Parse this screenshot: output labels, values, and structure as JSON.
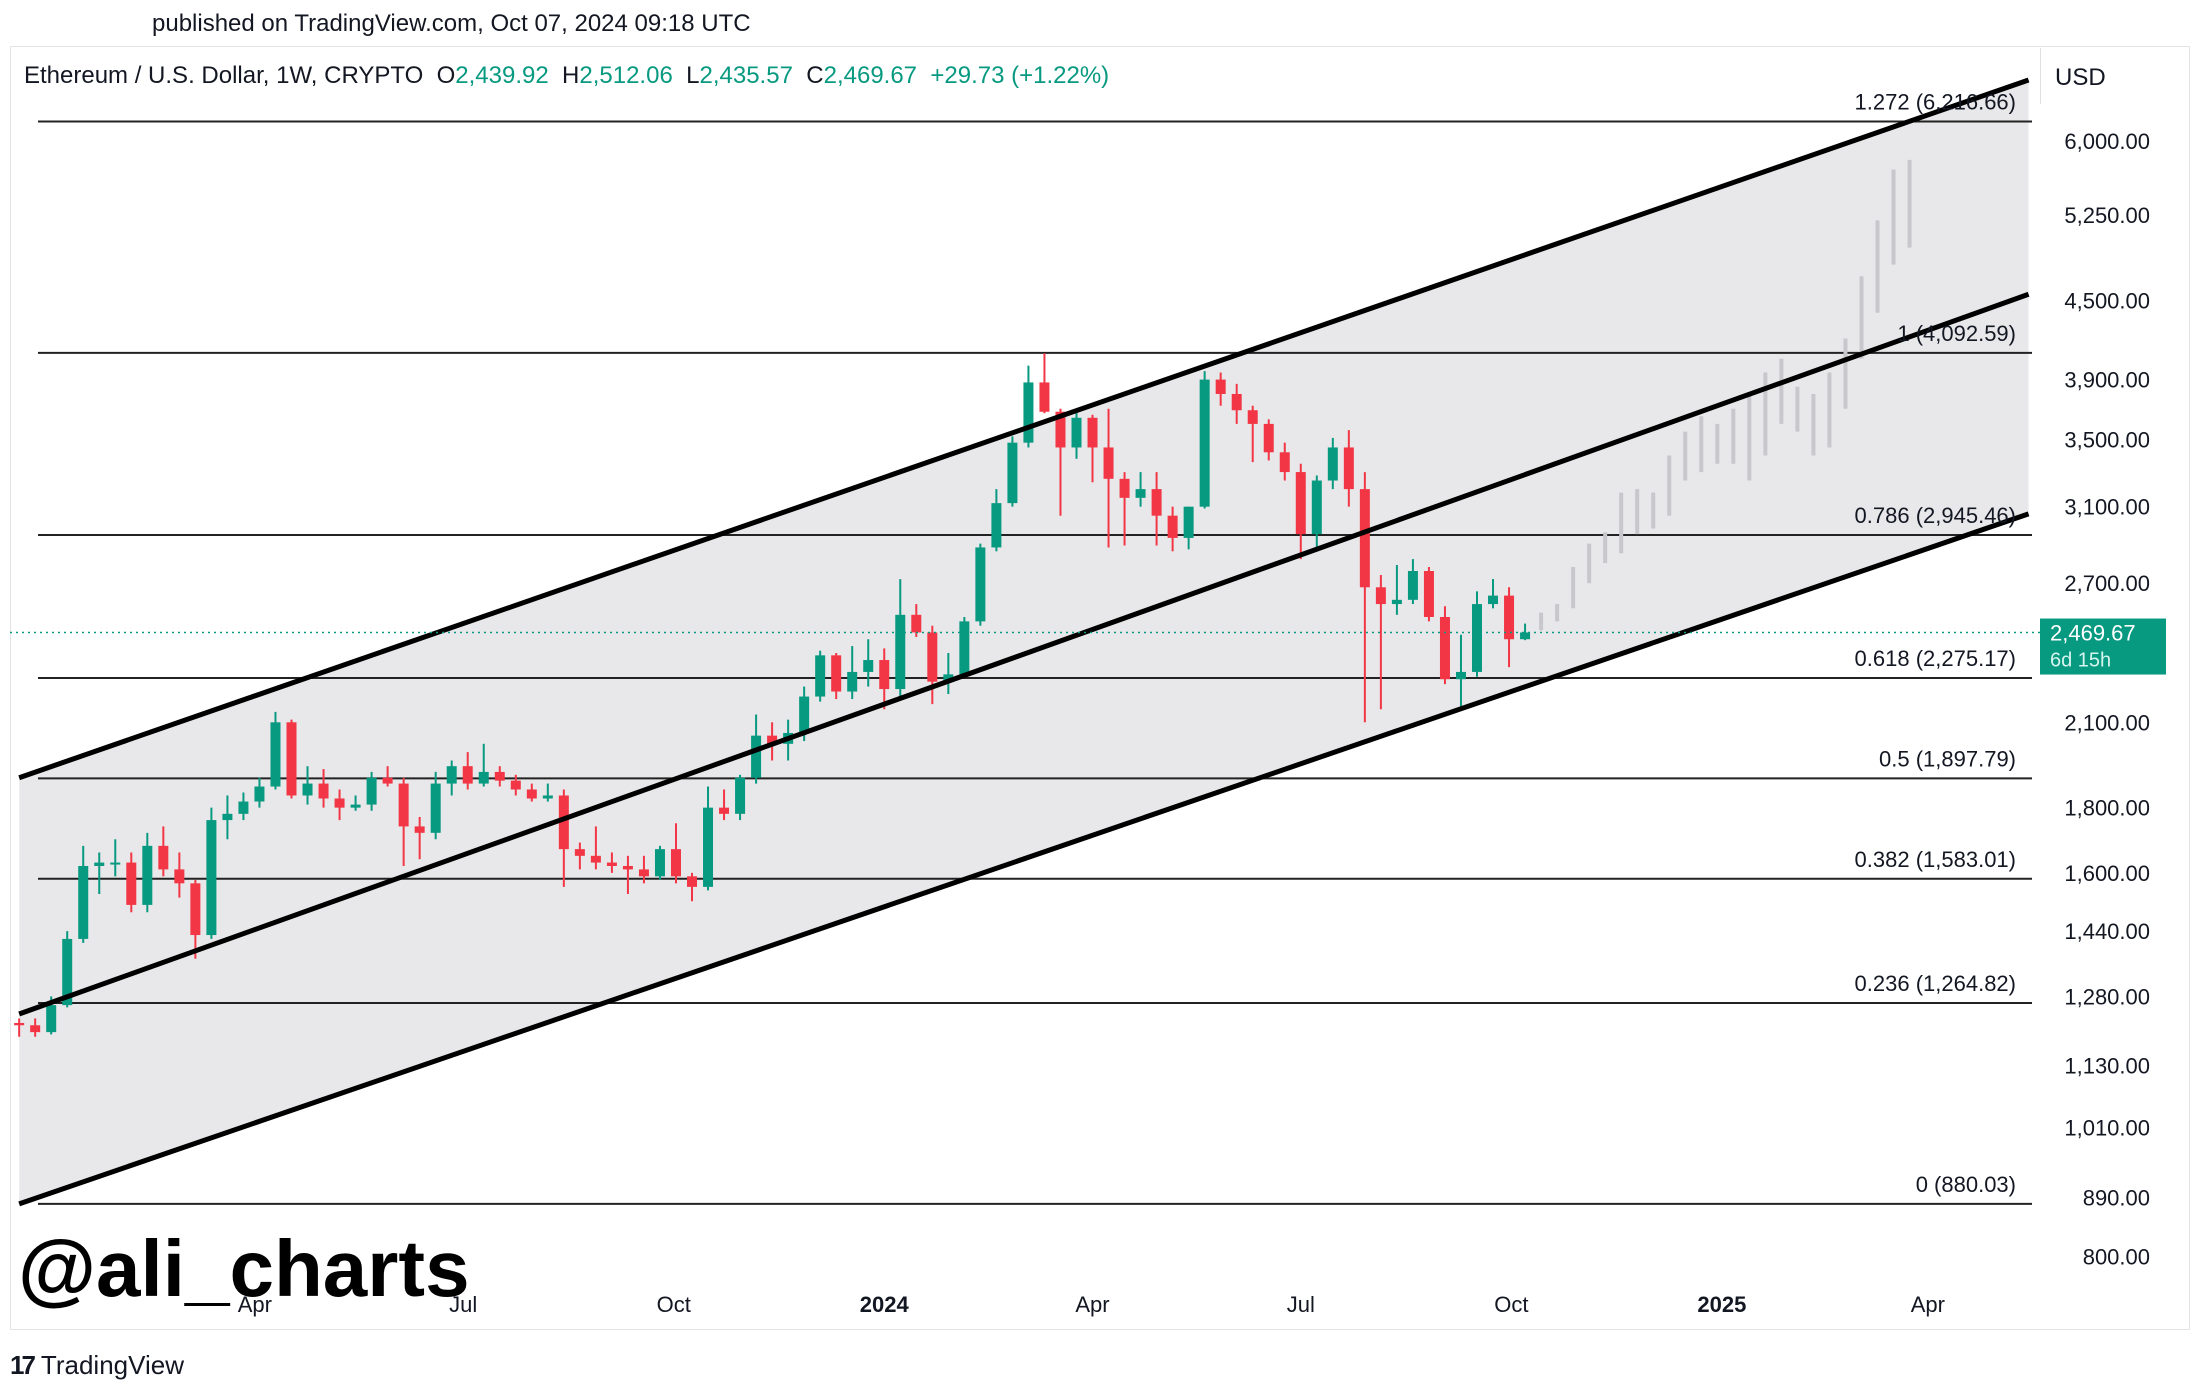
{
  "published": "published on TradingView.com, Oct 07, 2024 09:18 UTC",
  "header": {
    "symbol": "Ethereum / U.S. Dollar, 1W, CRYPTO",
    "o_label": "O",
    "o_value": "2,439.92",
    "h_label": "H",
    "h_value": "2,512.06",
    "l_label": "L",
    "l_value": "2,435.57",
    "c_label": "C",
    "c_value": "2,469.67",
    "change": "+29.73 (+1.22%)"
  },
  "currency": "USD",
  "watermark": "@ali_charts",
  "footer": {
    "logo": "17",
    "brand": "TradingView"
  },
  "colors": {
    "up": "#089981",
    "down": "#f23645",
    "band": "#e8e8ea",
    "line": "#000000"
  },
  "chart_data": {
    "type": "candlestick",
    "title": "Ethereum / U.S. Dollar, 1W, CRYPTO",
    "y_scale": "log",
    "ylim": [
      760,
      6700
    ],
    "y_ticks": [
      6000,
      5250,
      4500,
      3900,
      3500,
      3100,
      2700,
      2100,
      1800,
      1600,
      1440,
      1280,
      1130,
      1010,
      890,
      800
    ],
    "y_tick_labels": [
      "6,000.00",
      "5,250.00",
      "4,500.00",
      "3,900.00",
      "3,500.00",
      "3,100.00",
      "2,700.00",
      "2,100.00",
      "1,800.00",
      "1,600.00",
      "1,440.00",
      "1,280.00",
      "1,130.00",
      "1,010.00",
      "890.00",
      "800.00"
    ],
    "x_ticks": [
      {
        "label": "Apr",
        "date": "2023-04-01",
        "bold": false
      },
      {
        "label": "Jul",
        "date": "2023-07-01",
        "bold": false
      },
      {
        "label": "Oct",
        "date": "2023-10-01",
        "bold": false
      },
      {
        "label": "2024",
        "date": "2024-01-01",
        "bold": true
      },
      {
        "label": "Apr",
        "date": "2024-04-01",
        "bold": false
      },
      {
        "label": "Jul",
        "date": "2024-07-01",
        "bold": false
      },
      {
        "label": "Oct",
        "date": "2024-10-01",
        "bold": false
      },
      {
        "label": "2025",
        "date": "2025-01-01",
        "bold": true
      },
      {
        "label": "Apr",
        "date": "2025-04-01",
        "bold": false
      }
    ],
    "x_range": [
      "2022-12-15",
      "2025-05-20"
    ],
    "current_price": {
      "value": 2469.67,
      "label": "2,469.67",
      "countdown": "6d 15h"
    },
    "fib_levels": [
      {
        "ratio": "1.272",
        "price": 6216.66,
        "label": "1.272 (6,216.66)"
      },
      {
        "ratio": "1",
        "price": 4092.59,
        "label": "1 (4,092.59)"
      },
      {
        "ratio": "0.786",
        "price": 2945.46,
        "label": "0.786 (2,945.46)"
      },
      {
        "ratio": "0.618",
        "price": 2275.17,
        "label": "0.618 (2,275.17)"
      },
      {
        "ratio": "0.5",
        "price": 1897.79,
        "label": "0.5 (1,897.79)"
      },
      {
        "ratio": "0.382",
        "price": 1583.01,
        "label": "0.382 (1,583.01)"
      },
      {
        "ratio": "0.236",
        "price": 1264.82,
        "label": "0.236 (1,264.82)"
      },
      {
        "ratio": "0",
        "price": 880.03,
        "label": "0 (880.03)"
      }
    ],
    "channel": {
      "start_date": "2022-12-19",
      "end_date": "2025-05-15",
      "upper": [
        1900,
        6700
      ],
      "middle": [
        1240,
        4550
      ],
      "lower": [
        880,
        3060
      ]
    },
    "candles": [
      [
        "2022-12-19",
        1220,
        1215,
        1230,
        1190
      ],
      [
        "2022-12-26",
        1215,
        1200,
        1230,
        1190
      ],
      [
        "2023-01-02",
        1200,
        1260,
        1280,
        1195
      ],
      [
        "2023-01-09",
        1260,
        1420,
        1440,
        1255
      ],
      [
        "2023-01-16",
        1420,
        1620,
        1680,
        1410
      ],
      [
        "2023-01-23",
        1620,
        1630,
        1660,
        1540
      ],
      [
        "2023-01-30",
        1630,
        1630,
        1700,
        1590
      ],
      [
        "2023-02-06",
        1630,
        1510,
        1660,
        1490
      ],
      [
        "2023-02-13",
        1510,
        1680,
        1720,
        1490
      ],
      [
        "2023-02-20",
        1680,
        1610,
        1740,
        1590
      ],
      [
        "2023-02-27",
        1610,
        1570,
        1660,
        1530
      ],
      [
        "2023-03-06",
        1570,
        1430,
        1580,
        1370
      ],
      [
        "2023-03-13",
        1430,
        1760,
        1800,
        1420
      ],
      [
        "2023-03-20",
        1760,
        1780,
        1840,
        1700
      ],
      [
        "2023-03-27",
        1780,
        1820,
        1850,
        1760
      ],
      [
        "2023-04-03",
        1820,
        1870,
        1900,
        1800
      ],
      [
        "2023-04-10",
        1870,
        2100,
        2140,
        1860
      ],
      [
        "2023-04-17",
        2100,
        1840,
        2110,
        1830
      ],
      [
        "2023-04-24",
        1840,
        1880,
        1940,
        1810
      ],
      [
        "2023-05-01",
        1880,
        1830,
        1930,
        1800
      ],
      [
        "2023-05-08",
        1830,
        1800,
        1860,
        1760
      ],
      [
        "2023-05-15",
        1800,
        1810,
        1840,
        1790
      ],
      [
        "2023-05-22",
        1810,
        1900,
        1920,
        1790
      ],
      [
        "2023-05-29",
        1900,
        1880,
        1940,
        1870
      ],
      [
        "2023-06-05",
        1880,
        1740,
        1900,
        1620
      ],
      [
        "2023-06-12",
        1740,
        1720,
        1770,
        1640
      ],
      [
        "2023-06-19",
        1720,
        1880,
        1920,
        1700
      ],
      [
        "2023-06-26",
        1880,
        1940,
        1960,
        1840
      ],
      [
        "2023-07-03",
        1940,
        1880,
        1990,
        1860
      ],
      [
        "2023-07-10",
        1880,
        1920,
        2020,
        1870
      ],
      [
        "2023-07-17",
        1920,
        1890,
        1940,
        1870
      ],
      [
        "2023-07-24",
        1890,
        1860,
        1910,
        1840
      ],
      [
        "2023-07-31",
        1860,
        1830,
        1880,
        1820
      ],
      [
        "2023-08-07",
        1830,
        1840,
        1880,
        1820
      ],
      [
        "2023-08-14",
        1840,
        1670,
        1860,
        1560
      ],
      [
        "2023-08-21",
        1670,
        1650,
        1690,
        1610
      ],
      [
        "2023-08-28",
        1650,
        1630,
        1740,
        1610
      ],
      [
        "2023-09-04",
        1630,
        1620,
        1660,
        1600
      ],
      [
        "2023-09-11",
        1620,
        1610,
        1650,
        1540
      ],
      [
        "2023-09-18",
        1610,
        1590,
        1650,
        1570
      ],
      [
        "2023-09-25",
        1590,
        1670,
        1680,
        1580
      ],
      [
        "2023-10-02",
        1670,
        1590,
        1750,
        1570
      ],
      [
        "2023-10-09",
        1590,
        1560,
        1600,
        1520
      ],
      [
        "2023-10-16",
        1560,
        1800,
        1870,
        1550
      ],
      [
        "2023-10-23",
        1800,
        1780,
        1860,
        1760
      ],
      [
        "2023-10-30",
        1780,
        1900,
        1910,
        1760
      ],
      [
        "2023-11-06",
        1900,
        2050,
        2130,
        1880
      ],
      [
        "2023-11-13",
        2050,
        2020,
        2100,
        1960
      ],
      [
        "2023-11-20",
        2020,
        2060,
        2110,
        1960
      ],
      [
        "2023-11-27",
        2060,
        2200,
        2240,
        2030
      ],
      [
        "2023-12-04",
        2200,
        2370,
        2390,
        2180
      ],
      [
        "2023-12-11",
        2370,
        2220,
        2380,
        2190
      ],
      [
        "2023-12-18",
        2220,
        2300,
        2410,
        2190
      ],
      [
        "2023-12-25",
        2300,
        2350,
        2440,
        2240
      ],
      [
        "2024-01-01",
        2350,
        2230,
        2400,
        2150
      ],
      [
        "2024-01-08",
        2230,
        2550,
        2720,
        2200
      ],
      [
        "2024-01-15",
        2550,
        2470,
        2600,
        2450
      ],
      [
        "2024-01-22",
        2470,
        2260,
        2500,
        2170
      ],
      [
        "2024-01-29",
        2260,
        2290,
        2380,
        2210
      ],
      [
        "2024-02-05",
        2290,
        2520,
        2540,
        2290
      ],
      [
        "2024-02-12",
        2520,
        2880,
        2900,
        2500
      ],
      [
        "2024-02-19",
        2880,
        3120,
        3200,
        2860
      ],
      [
        "2024-02-26",
        3120,
        3480,
        3520,
        3100
      ],
      [
        "2024-03-04",
        3480,
        3880,
        4000,
        3450
      ],
      [
        "2024-03-11",
        3880,
        3680,
        4090,
        3670
      ],
      [
        "2024-03-18",
        3680,
        3450,
        3700,
        3050
      ],
      [
        "2024-03-25",
        3450,
        3640,
        3690,
        3380
      ],
      [
        "2024-04-01",
        3640,
        3450,
        3660,
        3240
      ],
      [
        "2024-04-08",
        3450,
        3260,
        3700,
        2880
      ],
      [
        "2024-04-15",
        3260,
        3150,
        3300,
        2890
      ],
      [
        "2024-04-22",
        3150,
        3200,
        3300,
        3100
      ],
      [
        "2024-04-29",
        3200,
        3050,
        3300,
        2890
      ],
      [
        "2024-05-06",
        3050,
        2930,
        3100,
        2860
      ],
      [
        "2024-05-13",
        2930,
        3100,
        3100,
        2870
      ],
      [
        "2024-05-20",
        3100,
        3900,
        3960,
        3090
      ],
      [
        "2024-05-27",
        3900,
        3800,
        3950,
        3720
      ],
      [
        "2024-06-03",
        3800,
        3690,
        3870,
        3600
      ],
      [
        "2024-06-10",
        3690,
        3600,
        3720,
        3360
      ],
      [
        "2024-06-17",
        3600,
        3420,
        3630,
        3370
      ],
      [
        "2024-06-24",
        3420,
        3300,
        3480,
        3250
      ],
      [
        "2024-07-01",
        3300,
        2950,
        3350,
        2820
      ],
      [
        "2024-07-08",
        2950,
        3250,
        3280,
        2860
      ],
      [
        "2024-07-15",
        3250,
        3450,
        3510,
        3200
      ],
      [
        "2024-07-22",
        3450,
        3200,
        3560,
        3100
      ],
      [
        "2024-07-29",
        3200,
        2680,
        3300,
        2100
      ],
      [
        "2024-08-05",
        2680,
        2600,
        2740,
        2150
      ],
      [
        "2024-08-12",
        2600,
        2620,
        2790,
        2550
      ],
      [
        "2024-08-19",
        2620,
        2760,
        2820,
        2600
      ],
      [
        "2024-08-26",
        2760,
        2540,
        2780,
        2520
      ],
      [
        "2024-09-02",
        2540,
        2270,
        2590,
        2250
      ],
      [
        "2024-09-09",
        2270,
        2300,
        2460,
        2150
      ],
      [
        "2024-09-16",
        2300,
        2600,
        2660,
        2280
      ],
      [
        "2024-09-23",
        2600,
        2640,
        2720,
        2580
      ],
      [
        "2024-09-30",
        2640,
        2440,
        2680,
        2320
      ],
      [
        "2024-10-07",
        2440,
        2470,
        2510,
        2436
      ]
    ],
    "projection": [
      [
        "2024-10-14",
        2480,
        2560
      ],
      [
        "2024-10-21",
        2520,
        2600
      ],
      [
        "2024-10-28",
        2580,
        2780
      ],
      [
        "2024-11-04",
        2700,
        2900
      ],
      [
        "2024-11-11",
        2800,
        2960
      ],
      [
        "2024-11-18",
        2850,
        3180
      ],
      [
        "2024-11-25",
        2950,
        3200
      ],
      [
        "2024-12-02",
        2980,
        3180
      ],
      [
        "2024-12-09",
        3050,
        3400
      ],
      [
        "2024-12-16",
        3250,
        3550
      ],
      [
        "2024-12-23",
        3300,
        3650
      ],
      [
        "2024-12-30",
        3350,
        3600
      ],
      [
        "2025-01-06",
        3350,
        3700
      ],
      [
        "2025-01-13",
        3250,
        3800
      ],
      [
        "2025-01-20",
        3400,
        3950
      ],
      [
        "2025-01-27",
        3600,
        4050
      ],
      [
        "2025-02-03",
        3550,
        3850
      ],
      [
        "2025-02-10",
        3400,
        3800
      ],
      [
        "2025-02-17",
        3450,
        3950
      ],
      [
        "2025-02-24",
        3700,
        4200
      ],
      [
        "2025-03-03",
        4050,
        4700
      ],
      [
        "2025-03-10",
        4400,
        5200
      ],
      [
        "2025-03-17",
        4800,
        5700
      ],
      [
        "2025-03-24",
        4950,
        5800
      ]
    ]
  }
}
